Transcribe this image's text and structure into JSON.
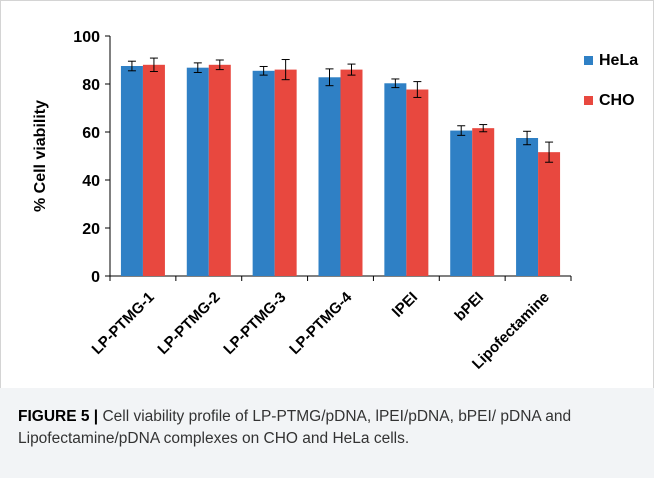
{
  "chart_data": {
    "type": "bar",
    "title": "",
    "xlabel": "",
    "ylabel": "% Cell viability",
    "ylim": [
      0,
      100
    ],
    "yticks": [
      0,
      20,
      40,
      60,
      80,
      100
    ],
    "grid": false,
    "legend_position": "right",
    "categories": [
      "LP-PTMG-1",
      "LP-PTMG-2",
      "LP-PTMG-3",
      "LP-PTMG-4",
      "lPEI",
      "bPEI",
      "Lipofectamine"
    ],
    "series": [
      {
        "name": "HeLa",
        "color": "#2f80c5",
        "values": [
          87.5,
          86.8,
          85.5,
          82.8,
          80.3,
          60.6,
          57.5
        ],
        "errors": [
          2.0,
          2.0,
          1.8,
          3.5,
          1.8,
          2.0,
          2.8
        ]
      },
      {
        "name": "CHO",
        "color": "#e8483f",
        "values": [
          88.0,
          88.0,
          86.0,
          86.0,
          77.7,
          61.6,
          51.6
        ],
        "errors": [
          2.8,
          2.0,
          4.2,
          2.3,
          3.3,
          1.5,
          4.2
        ]
      }
    ]
  },
  "caption": {
    "label": "FIGURE 5 |",
    "text": " Cell viability profile of LP-PTMG/pDNA, lPEI/pDNA, bPEI/ pDNA and Lipofectamine/pDNA complexes on CHO and HeLa cells."
  }
}
